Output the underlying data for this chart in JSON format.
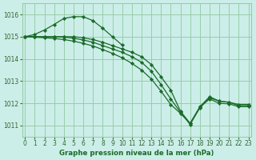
{
  "bg_color": "#cceee8",
  "grid_color": "#99ccaa",
  "line_color": "#1a6b2a",
  "marker_color": "#1a6b2a",
  "xlabel": "Graphe pression niveau de la mer (hPa)",
  "xlabel_color": "#1a6b2a",
  "tick_color": "#336633",
  "ylim": [
    1010.5,
    1016.5
  ],
  "xlim": [
    -0.3,
    23.3
  ],
  "yticks": [
    1011,
    1012,
    1013,
    1014,
    1015,
    1016
  ],
  "xticks": [
    0,
    1,
    2,
    3,
    4,
    5,
    6,
    7,
    8,
    9,
    10,
    11,
    12,
    13,
    14,
    15,
    16,
    17,
    18,
    19,
    20,
    21,
    22,
    23
  ],
  "lines": [
    {
      "x": [
        0,
        1,
        2,
        3,
        4,
        5,
        6,
        7,
        8,
        9,
        10
      ],
      "y": [
        1015.0,
        1015.1,
        1015.3,
        1015.55,
        1015.82,
        1015.9,
        1015.9,
        1015.72,
        1015.38,
        1015.0,
        1014.62
      ]
    },
    {
      "x": [
        0,
        1,
        2,
        3,
        4,
        5,
        6,
        7,
        8,
        9,
        10,
        11,
        12,
        13,
        14,
        15,
        16,
        17,
        18,
        19,
        20,
        21,
        22,
        23
      ],
      "y": [
        1015.0,
        1015.0,
        1015.0,
        1015.0,
        1015.0,
        1015.0,
        1014.95,
        1014.87,
        1014.75,
        1014.6,
        1014.45,
        1014.3,
        1014.1,
        1013.75,
        1013.2,
        1012.6,
        1011.65,
        1011.1,
        1011.85,
        1012.3,
        1012.1,
        1012.05,
        1011.95,
        1011.95
      ]
    },
    {
      "x": [
        0,
        1,
        2,
        3,
        4,
        5,
        6,
        7,
        8,
        9,
        10,
        11,
        12,
        13,
        14,
        15,
        16,
        17,
        18,
        19,
        20,
        21,
        22,
        23
      ],
      "y": [
        1015.0,
        1015.0,
        1015.0,
        1015.0,
        1014.98,
        1014.93,
        1014.85,
        1014.75,
        1014.6,
        1014.45,
        1014.3,
        1014.1,
        1013.85,
        1013.45,
        1012.85,
        1012.2,
        1011.6,
        1011.05,
        1011.8,
        1012.25,
        1012.1,
        1012.05,
        1011.9,
        1011.9
      ]
    },
    {
      "x": [
        0,
        1,
        2,
        3,
        4,
        5,
        6,
        7,
        8,
        9,
        10,
        11,
        12,
        13,
        14,
        15,
        16,
        17,
        18,
        19,
        20,
        21,
        22,
        23
      ],
      "y": [
        1015.0,
        1014.98,
        1014.95,
        1014.92,
        1014.87,
        1014.8,
        1014.7,
        1014.58,
        1014.42,
        1014.25,
        1014.05,
        1013.8,
        1013.5,
        1013.1,
        1012.55,
        1011.95,
        1011.55,
        1011.1,
        1011.82,
        1012.2,
        1012.0,
        1011.98,
        1011.85,
        1011.85
      ]
    }
  ]
}
